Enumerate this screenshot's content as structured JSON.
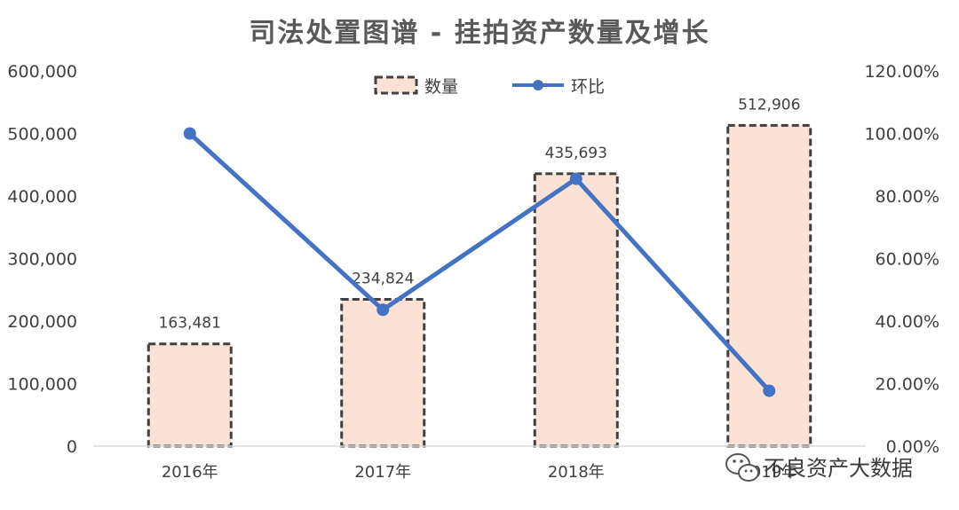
{
  "chart_data": {
    "type": "bar",
    "title": "司法处置图谱 - 挂拍资产数量及增长",
    "categories": [
      "2016年",
      "2017年",
      "2018年",
      "2019年"
    ],
    "series": [
      {
        "name": "数量",
        "type": "bar",
        "axis": "left",
        "values": [
          163481,
          234824,
          435693,
          512906
        ],
        "value_labels": [
          "163,481",
          "234,824",
          "435,693",
          "512,906"
        ]
      },
      {
        "name": "环比",
        "type": "line",
        "axis": "right",
        "values": [
          100.0,
          43.6,
          85.5,
          17.7
        ]
      }
    ],
    "y_left": {
      "min": 0,
      "max": 600000,
      "ticks": [
        "0",
        "100,000",
        "200,000",
        "300,000",
        "400,000",
        "500,000",
        "600,000"
      ]
    },
    "y_right": {
      "min": 0,
      "max": 120,
      "unit": "%",
      "ticks": [
        "0.00%",
        "20.00%",
        "40.00%",
        "60.00%",
        "80.00%",
        "100.00%",
        "120.00%"
      ]
    },
    "grid": false,
    "legend": "top-center",
    "colors": {
      "bar_fill": "#FBE2D5",
      "bar_stroke": "#404040",
      "line": "#4472C4",
      "axis_text": "#404040",
      "title": "#595959"
    }
  },
  "watermark": {
    "text": "不良资产大数据",
    "icon": "wechat-icon"
  }
}
